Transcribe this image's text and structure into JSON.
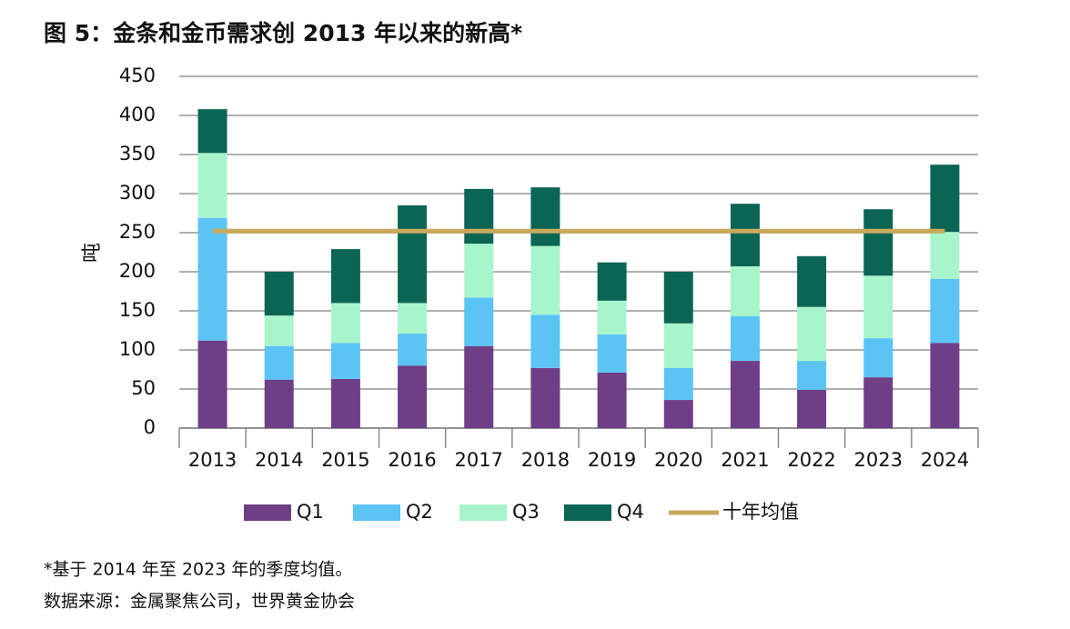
{
  "chart_data": {
    "type": "bar",
    "stacked": true,
    "title": "图 5：金条和金币需求创 2013 年以来的新高*",
    "y_label": "吨",
    "categories": [
      "2013",
      "2014",
      "2015",
      "2016",
      "2017",
      "2018",
      "2019",
      "2020",
      "2021",
      "2022",
      "2023",
      "2024"
    ],
    "series": [
      {
        "name": "Q1",
        "color": "#6e3f87",
        "values": [
          112,
          62,
          63,
          80,
          105,
          77,
          71,
          36,
          86,
          49,
          65,
          109
        ]
      },
      {
        "name": "Q2",
        "color": "#5bc4f5",
        "values": [
          157,
          43,
          46,
          41,
          62,
          68,
          49,
          41,
          57,
          37,
          50,
          82
        ]
      },
      {
        "name": "Q3",
        "color": "#a8f5cc",
        "values": [
          83,
          39,
          51,
          39,
          69,
          88,
          43,
          57,
          64,
          69,
          80,
          60
        ]
      },
      {
        "name": "Q4",
        "color": "#0b6555",
        "values": [
          56,
          56,
          69,
          125,
          70,
          75,
          49,
          66,
          80,
          65,
          85,
          86
        ]
      }
    ],
    "line_series": {
      "name": "十年均值",
      "color": "#c8aa5a",
      "values": [
        252,
        252,
        252,
        252,
        252,
        252,
        252,
        252,
        252,
        252,
        252,
        252
      ]
    },
    "ylim": [
      0,
      450
    ],
    "yticks": [
      0,
      50,
      100,
      150,
      200,
      250,
      300,
      350,
      400,
      450
    ],
    "grid": true,
    "footnote": "*基于 2014 年至 2023 年的季度均值。",
    "source": "数据来源：金属聚焦公司，世界黄金协会"
  }
}
